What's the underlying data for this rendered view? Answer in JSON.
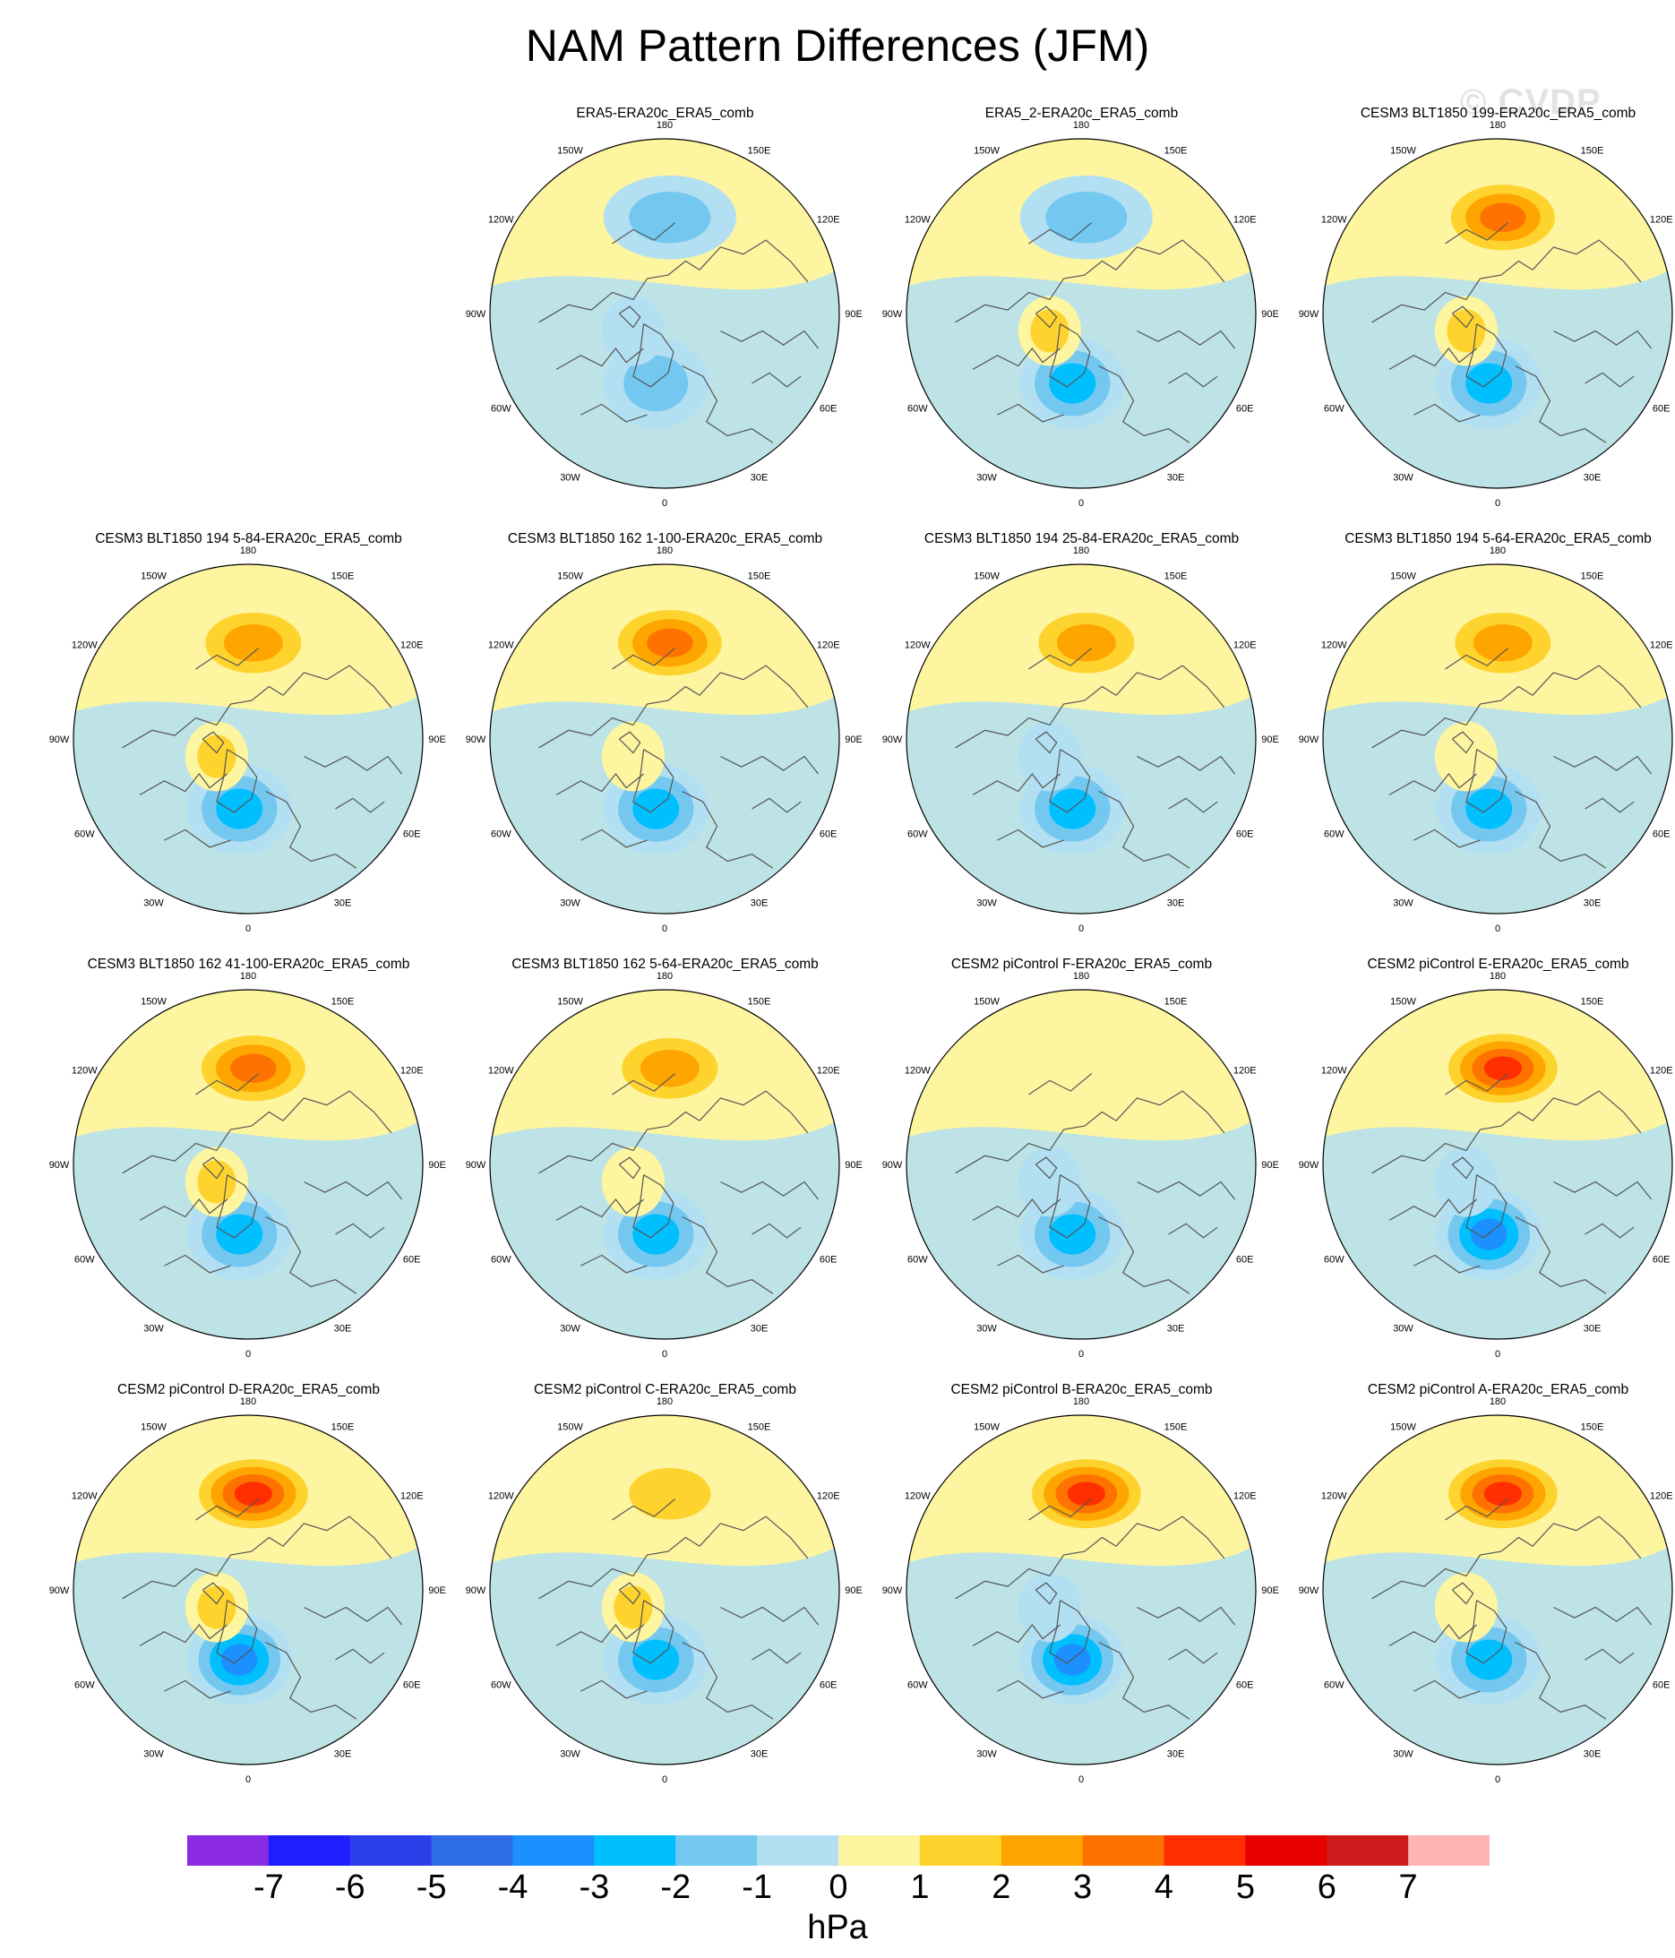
{
  "figure": {
    "title": "NAM Pattern Differences (JFM)",
    "watermark": "© CVDP",
    "units": "hPa"
  },
  "palette": {
    "levels": [
      -7,
      -6,
      -5,
      -4,
      -3,
      -2,
      -1,
      0,
      1,
      2,
      3,
      4,
      5,
      6,
      7
    ],
    "colors": [
      "#8a2be2",
      "#1e1efe",
      "#2a3fe8",
      "#2e6de6",
      "#1c90ff",
      "#00bfff",
      "#74c8f0",
      "#b2dff2",
      "#fdf5a0",
      "#fed32e",
      "#fea500",
      "#fe7300",
      "#ff2f00",
      "#e60000",
      "#cd1a1a",
      "#fcb4b4"
    ],
    "land_outline": "#555555",
    "grid_rim": "#000000"
  },
  "map_labels": {
    "lon_180": "180",
    "lon_150w": "150W",
    "lon_150e": "150E",
    "lon_120w": "120W",
    "lon_120e": "120E",
    "lon_90w": "90W",
    "lon_90e": "90E",
    "lon_60w": "60W",
    "lon_60e": "60E",
    "lon_30w": "30W",
    "lon_30e": "30E",
    "lon_0": "0"
  },
  "chart_data": [
    {
      "type": "contour-map",
      "title": "ERA5-ERA20c_ERA5_comb",
      "xlabel": "",
      "ylabel": "",
      "series": [
        {
          "name": "pacific_center",
          "value": -1.4
        },
        {
          "name": "atlantic_center",
          "value": -1.6
        },
        {
          "name": "arctic_center",
          "value": -0.6
        }
      ]
    },
    {
      "type": "contour-map",
      "title": "ERA5_2-ERA20c_ERA5_comb",
      "xlabel": "",
      "ylabel": "",
      "series": [
        {
          "name": "pacific_center",
          "value": -1.3
        },
        {
          "name": "atlantic_center",
          "value": -2.4
        },
        {
          "name": "arctic_center",
          "value": 1.3
        }
      ]
    },
    {
      "type": "contour-map",
      "title": "CESM3 BLT1850 199-ERA20c_ERA5_comb",
      "xlabel": "",
      "ylabel": "",
      "series": [
        {
          "name": "pacific_center",
          "value": 3.2
        },
        {
          "name": "atlantic_center",
          "value": -2.5
        },
        {
          "name": "arctic_center",
          "value": 1.4
        }
      ]
    },
    {
      "type": "contour-map",
      "title": "CESM3 BLT1850 194 5-84-ERA20c_ERA5_comb",
      "xlabel": "",
      "ylabel": "",
      "series": [
        {
          "name": "pacific_center",
          "value": 2.6
        },
        {
          "name": "atlantic_center",
          "value": -2.3
        },
        {
          "name": "arctic_center",
          "value": 1.3
        }
      ]
    },
    {
      "type": "contour-map",
      "title": "CESM3 BLT1850 162 1-100-ERA20c_ERA5_comb",
      "xlabel": "",
      "ylabel": "",
      "series": [
        {
          "name": "pacific_center",
          "value": 3.1
        },
        {
          "name": "atlantic_center",
          "value": -2.3
        },
        {
          "name": "arctic_center",
          "value": 0.6
        }
      ]
    },
    {
      "type": "contour-map",
      "title": "CESM3 BLT1850 194 25-84-ERA20c_ERA5_comb",
      "xlabel": "",
      "ylabel": "",
      "series": [
        {
          "name": "pacific_center",
          "value": 2.6
        },
        {
          "name": "atlantic_center",
          "value": -2.3
        },
        {
          "name": "arctic_center",
          "value": -0.6
        }
      ]
    },
    {
      "type": "contour-map",
      "title": "CESM3 BLT1850 194 5-64-ERA20c_ERA5_comb",
      "xlabel": "",
      "ylabel": "",
      "series": [
        {
          "name": "pacific_center",
          "value": 2.3
        },
        {
          "name": "atlantic_center",
          "value": -2.6
        },
        {
          "name": "arctic_center",
          "value": 0.6
        }
      ]
    },
    {
      "type": "contour-map",
      "title": "CESM3 BLT1850 162 41-100-ERA20c_ERA5_comb",
      "xlabel": "",
      "ylabel": "",
      "series": [
        {
          "name": "pacific_center",
          "value": 3.2
        },
        {
          "name": "atlantic_center",
          "value": -2.7
        },
        {
          "name": "arctic_center",
          "value": 1.4
        }
      ]
    },
    {
      "type": "contour-map",
      "title": "CESM3 BLT1850 162 5-64-ERA20c_ERA5_comb",
      "xlabel": "",
      "ylabel": "",
      "series": [
        {
          "name": "pacific_center",
          "value": 2.7
        },
        {
          "name": "atlantic_center",
          "value": -2.6
        },
        {
          "name": "arctic_center",
          "value": 0.6
        }
      ]
    },
    {
      "type": "contour-map",
      "title": "CESM2 piControl F-ERA20c_ERA5_comb",
      "xlabel": "",
      "ylabel": "",
      "series": [
        {
          "name": "pacific_center",
          "value": 0.6
        },
        {
          "name": "atlantic_center",
          "value": -2.3
        },
        {
          "name": "arctic_center",
          "value": -0.6
        }
      ]
    },
    {
      "type": "contour-map",
      "title": "CESM2 piControl E-ERA20c_ERA5_comb",
      "xlabel": "",
      "ylabel": "",
      "series": [
        {
          "name": "pacific_center",
          "value": 4.2
        },
        {
          "name": "atlantic_center",
          "value": -3.2
        },
        {
          "name": "arctic_center",
          "value": -0.6
        }
      ]
    },
    {
      "type": "contour-map",
      "title": "CESM2 piControl D-ERA20c_ERA5_comb",
      "xlabel": "",
      "ylabel": "",
      "series": [
        {
          "name": "pacific_center",
          "value": 4.3
        },
        {
          "name": "atlantic_center",
          "value": -3.3
        },
        {
          "name": "arctic_center",
          "value": 1.3
        }
      ]
    },
    {
      "type": "contour-map",
      "title": "CESM2 piControl C-ERA20c_ERA5_comb",
      "xlabel": "",
      "ylabel": "",
      "series": [
        {
          "name": "pacific_center",
          "value": 1.6
        },
        {
          "name": "atlantic_center",
          "value": -2.8
        },
        {
          "name": "arctic_center",
          "value": 1.3
        }
      ]
    },
    {
      "type": "contour-map",
      "title": "CESM2 piControl B-ERA20c_ERA5_comb",
      "xlabel": "",
      "ylabel": "",
      "series": [
        {
          "name": "pacific_center",
          "value": 4.4
        },
        {
          "name": "atlantic_center",
          "value": -3.2
        },
        {
          "name": "arctic_center",
          "value": -0.6
        }
      ]
    },
    {
      "type": "contour-map",
      "title": "CESM2 piControl A-ERA20c_ERA5_comb",
      "xlabel": "",
      "ylabel": "",
      "series": [
        {
          "name": "pacific_center",
          "value": 4.4
        },
        {
          "name": "atlantic_center",
          "value": -2.6
        },
        {
          "name": "arctic_center",
          "value": 0.6
        }
      ]
    }
  ]
}
